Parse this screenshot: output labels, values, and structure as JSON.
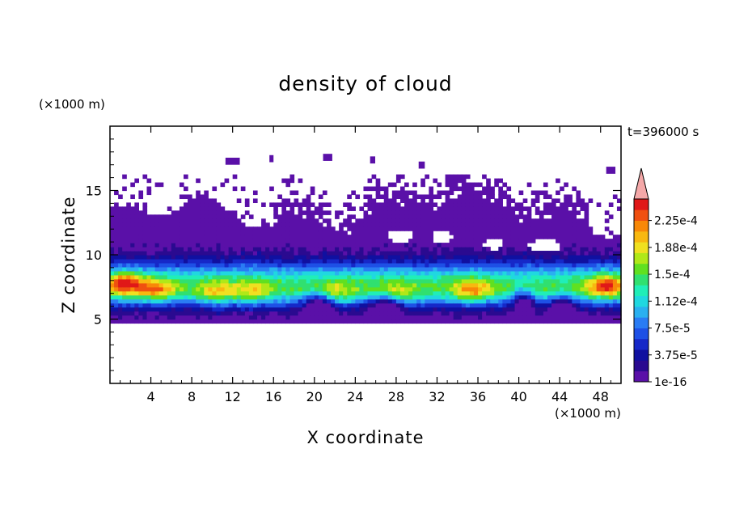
{
  "chart_data": {
    "type": "heatmap",
    "title": "density of cloud",
    "xlabel": "X coordinate",
    "ylabel": "Z coordinate",
    "x_unit": "(×1000 m)",
    "y_unit": "(×1000 m)",
    "time_label": "t=396000 s",
    "xlim": [
      0,
      50
    ],
    "ylim": [
      0,
      20
    ],
    "x_ticks": [
      "4",
      "8",
      "12",
      "16",
      "20",
      "24",
      "28",
      "32",
      "36",
      "40",
      "44",
      "48"
    ],
    "y_ticks": [
      "5",
      "10",
      "15"
    ],
    "colorbar": {
      "tick_labels": [
        "1e-16",
        "3.75e-5",
        "7.5e-5",
        "1.12e-4",
        "1.5e-4",
        "1.88e-4",
        "2.25e-4"
      ],
      "colors": [
        "#5a10a8",
        "#2a0a90",
        "#1010a0",
        "#1628c8",
        "#1e50e6",
        "#2a7cf4",
        "#2ab0f0",
        "#20d8e0",
        "#20eeb8",
        "#30e070",
        "#60e020",
        "#b0e818",
        "#f0e020",
        "#f8b810",
        "#f88808",
        "#f05010",
        "#e01818",
        "#f0a0a0"
      ],
      "overflow_color": "#f4a8a8"
    },
    "cloud_layer": {
      "base_km": 4.8,
      "top_km": 14.2,
      "max_density_height_km": 7.5
    }
  }
}
